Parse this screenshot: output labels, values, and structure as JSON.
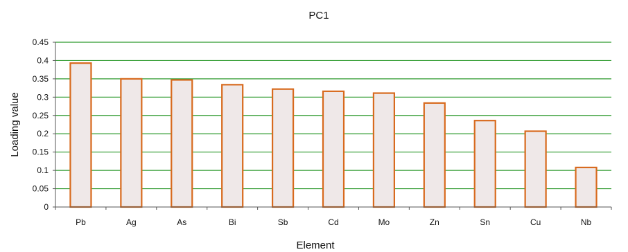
{
  "chart_data": {
    "type": "bar",
    "title": "PC1",
    "xlabel": "Element",
    "ylabel": "Loading value",
    "categories": [
      "Pb",
      "Ag",
      "As",
      "Bi",
      "Sb",
      "Cd",
      "Mo",
      "Zn",
      "Sn",
      "Cu",
      "Nb"
    ],
    "values": [
      0.393,
      0.35,
      0.347,
      0.334,
      0.322,
      0.316,
      0.311,
      0.284,
      0.236,
      0.207,
      0.108
    ],
    "ylim": [
      0,
      0.45
    ],
    "yticks": [
      "0",
      "0.05",
      "0.1",
      "0.15",
      "0.2",
      "0.25",
      "0.3",
      "0.35",
      "0.4",
      "0.45"
    ],
    "grid": true,
    "legend": "none",
    "colors": {
      "bar_fill": "#efe8e8",
      "bar_stroke": "#d86a1e",
      "gridline": "#2e9a2e",
      "axis": "#555555"
    }
  }
}
